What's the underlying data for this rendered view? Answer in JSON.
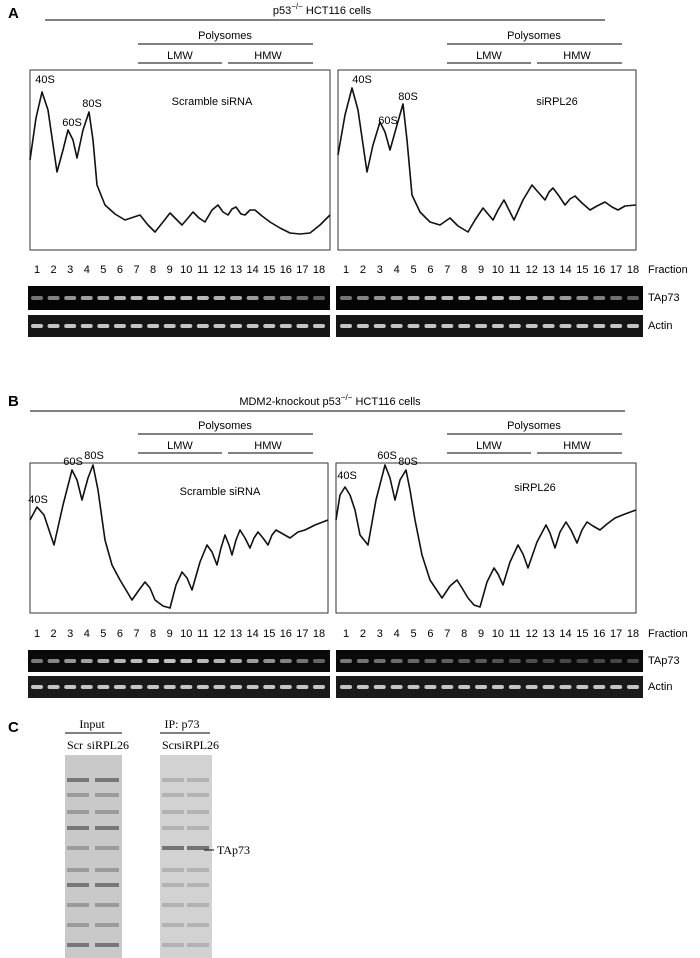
{
  "panels": [
    {
      "label": "A",
      "title": [
        "p53",
        "−/−",
        " HCT116 cells"
      ],
      "profiles": [
        {
          "polysomes": "Polysomes",
          "lmw": "LMW",
          "hmw": "HMW",
          "peaks": [
            "40S",
            "60S",
            "80S"
          ],
          "name": "Scramble siRNA"
        },
        {
          "polysomes": "Polysomes",
          "lmw": "LMW",
          "hmw": "HMW",
          "peaks": [
            "40S",
            "60S",
            "80S"
          ],
          "name": "siRPL26"
        }
      ],
      "fractions": [
        1,
        2,
        3,
        4,
        5,
        6,
        7,
        8,
        9,
        10,
        11,
        12,
        13,
        14,
        15,
        16,
        17,
        18
      ],
      "fraction_label": "Fraction",
      "blots": [
        "TAp73",
        "Actin"
      ]
    },
    {
      "label": "B",
      "title": [
        "MDM2-knockout p53",
        "−/−",
        " HCT116 cells"
      ],
      "profiles": [
        {
          "polysomes": "Polysomes",
          "lmw": "LMW",
          "hmw": "HMW",
          "peaks": [
            "40S",
            "60S",
            "80S"
          ],
          "name": "Scramble siRNA"
        },
        {
          "polysomes": "Polysomes",
          "lmw": "LMW",
          "hmw": "HMW",
          "peaks": [
            "40S",
            "60S",
            "80S"
          ],
          "name": "siRPL26"
        }
      ],
      "fractions": [
        1,
        2,
        3,
        4,
        5,
        6,
        7,
        8,
        9,
        10,
        11,
        12,
        13,
        14,
        15,
        16,
        17,
        18
      ],
      "fraction_label": "Fraction",
      "blots": [
        "TAp73",
        "Actin"
      ]
    },
    {
      "label": "C",
      "groups": [
        {
          "name": "Input",
          "lanes": [
            "Scr",
            "siRPL26"
          ]
        },
        {
          "name": "IP: p73",
          "lanes": [
            "Scr",
            "siRPL26"
          ]
        }
      ],
      "band_label": "TAp73"
    }
  ]
}
